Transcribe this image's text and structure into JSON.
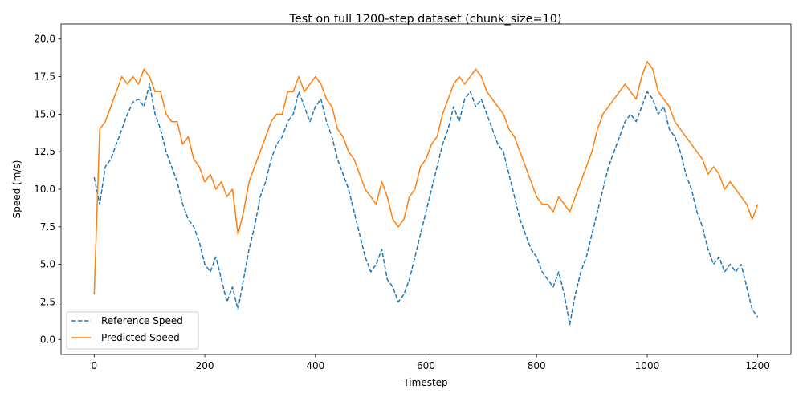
{
  "chart_data": {
    "type": "line",
    "title": "Test on full 1200-step dataset (chunk_size=10)",
    "xlabel": "Timestep",
    "ylabel": "Speed (m/s)",
    "xlim": [
      -60,
      1260
    ],
    "ylim": [
      -1.0,
      21.0
    ],
    "xticks": [
      0,
      200,
      400,
      600,
      800,
      1000,
      1200
    ],
    "xtick_labels": [
      "0",
      "200",
      "400",
      "600",
      "800",
      "1000",
      "1200"
    ],
    "yticks": [
      0.0,
      2.5,
      5.0,
      7.5,
      10.0,
      12.5,
      15.0,
      17.5,
      20.0
    ],
    "ytick_labels": [
      "0.0",
      "2.5",
      "5.0",
      "7.5",
      "10.0",
      "12.5",
      "15.0",
      "17.5",
      "20.0"
    ],
    "grid": false,
    "legend_position": "lower-left",
    "x": [
      0,
      10,
      20,
      30,
      40,
      50,
      60,
      70,
      80,
      90,
      100,
      110,
      120,
      130,
      140,
      150,
      160,
      170,
      180,
      190,
      200,
      210,
      220,
      230,
      240,
      250,
      260,
      270,
      280,
      290,
      300,
      310,
      320,
      330,
      340,
      350,
      360,
      370,
      380,
      390,
      400,
      410,
      420,
      430,
      440,
      450,
      460,
      470,
      480,
      490,
      500,
      510,
      520,
      530,
      540,
      550,
      560,
      570,
      580,
      590,
      600,
      610,
      620,
      630,
      640,
      650,
      660,
      670,
      680,
      690,
      700,
      710,
      720,
      730,
      740,
      750,
      760,
      770,
      780,
      790,
      800,
      810,
      820,
      830,
      840,
      850,
      860,
      870,
      880,
      890,
      900,
      910,
      920,
      930,
      940,
      950,
      960,
      970,
      980,
      990,
      1000,
      1010,
      1020,
      1030,
      1040,
      1050,
      1060,
      1070,
      1080,
      1090,
      1100,
      1110,
      1120,
      1130,
      1140,
      1150,
      1160,
      1170,
      1180,
      1190,
      1200
    ],
    "series": [
      {
        "name": "Reference Speed",
        "color": "#1f77b4",
        "style": "dashed",
        "values": [
          10.8,
          9.0,
          11.5,
          12.0,
          13.0,
          14.0,
          15.0,
          15.8,
          16.0,
          15.5,
          17.0,
          15.0,
          14.0,
          12.5,
          11.5,
          10.5,
          9.0,
          8.0,
          7.5,
          6.5,
          5.0,
          4.5,
          5.5,
          4.0,
          2.5,
          3.5,
          2.0,
          4.0,
          6.0,
          7.5,
          9.5,
          10.5,
          12.0,
          13.0,
          13.5,
          14.5,
          15.0,
          16.5,
          15.5,
          14.5,
          15.5,
          16.0,
          14.5,
          13.5,
          12.0,
          11.0,
          10.0,
          8.5,
          7.0,
          5.5,
          4.5,
          5.0,
          6.0,
          4.0,
          3.5,
          2.5,
          3.0,
          4.0,
          5.5,
          7.0,
          8.5,
          10.0,
          11.5,
          13.0,
          14.0,
          15.5,
          14.5,
          16.0,
          16.5,
          15.5,
          16.0,
          15.0,
          14.0,
          13.0,
          12.5,
          11.0,
          9.5,
          8.0,
          7.0,
          6.0,
          5.5,
          4.5,
          4.0,
          3.5,
          4.5,
          3.0,
          1.0,
          3.0,
          4.5,
          5.5,
          7.0,
          8.5,
          10.0,
          11.5,
          12.5,
          13.5,
          14.5,
          15.0,
          14.5,
          15.5,
          16.5,
          16.0,
          15.0,
          15.5,
          14.0,
          13.5,
          12.5,
          11.0,
          10.0,
          8.5,
          7.5,
          6.0,
          5.0,
          5.5,
          4.5,
          5.0,
          4.5,
          5.0,
          3.5,
          2.0,
          1.5
        ]
      },
      {
        "name": "Predicted Speed",
        "color": "#ff7f0e",
        "style": "solid",
        "values": [
          3.0,
          14.0,
          14.5,
          15.5,
          16.5,
          17.5,
          17.0,
          17.5,
          17.0,
          18.0,
          17.5,
          16.5,
          16.5,
          15.0,
          14.5,
          14.5,
          13.0,
          13.5,
          12.0,
          11.5,
          10.5,
          11.0,
          10.0,
          10.5,
          9.5,
          10.0,
          7.0,
          8.5,
          10.5,
          11.5,
          12.5,
          13.5,
          14.5,
          15.0,
          15.0,
          16.5,
          16.5,
          17.5,
          16.5,
          17.0,
          17.5,
          17.0,
          16.0,
          15.5,
          14.0,
          13.5,
          12.5,
          12.0,
          11.0,
          10.0,
          9.5,
          9.0,
          10.5,
          9.5,
          8.0,
          7.5,
          8.0,
          9.5,
          10.0,
          11.5,
          12.0,
          13.0,
          13.5,
          15.0,
          16.0,
          17.0,
          17.5,
          17.0,
          17.5,
          18.0,
          17.5,
          16.5,
          16.0,
          15.5,
          15.0,
          14.0,
          13.5,
          12.5,
          11.5,
          10.5,
          9.5,
          9.0,
          9.0,
          8.5,
          9.5,
          9.0,
          8.5,
          9.5,
          10.5,
          11.5,
          12.5,
          14.0,
          15.0,
          15.5,
          16.0,
          16.5,
          17.0,
          16.5,
          16.0,
          17.5,
          18.5,
          18.0,
          16.5,
          16.0,
          15.5,
          14.5,
          14.0,
          13.5,
          13.0,
          12.5,
          12.0,
          11.0,
          11.5,
          11.0,
          10.0,
          10.5,
          10.0,
          9.5,
          9.0,
          8.0,
          9.0
        ]
      }
    ]
  }
}
